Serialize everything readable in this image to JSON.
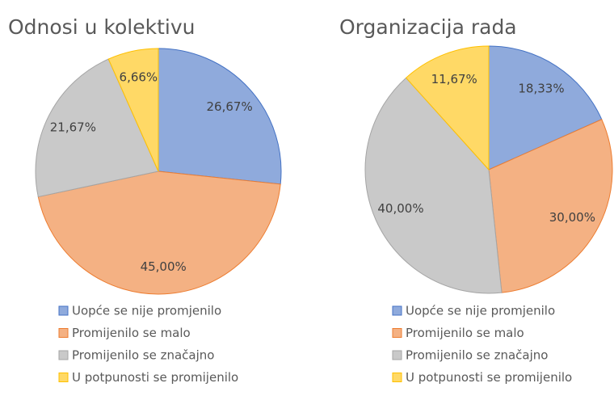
{
  "chart_data": [
    {
      "type": "pie",
      "title": "Odnosi u kolektivu",
      "categories": [
        "Uopće se nije promjenilo",
        "Promijenilo se malo",
        "Promijenilo se značajno",
        "U potpunosti se promijenilo"
      ],
      "values": [
        26.67,
        45.0,
        21.67,
        6.66
      ],
      "value_labels": [
        "26,67%",
        "45,00%",
        "21,67%",
        "6,66%"
      ],
      "colors": [
        "#8faadc",
        "#f4b183",
        "#c9c9c9",
        "#ffd966"
      ]
    },
    {
      "type": "pie",
      "title": "Organizacija rada",
      "categories": [
        "Uopće se nije promjenilo",
        "Promijenilo se malo",
        "Promijenilo se značajno",
        "U potpunosti se promijenilo"
      ],
      "values": [
        18.33,
        30.0,
        40.0,
        11.67
      ],
      "value_labels": [
        "18,33%",
        "30,00%",
        "40,00%",
        "11,67%"
      ],
      "colors": [
        "#8faadc",
        "#f4b183",
        "#c9c9c9",
        "#ffd966"
      ]
    }
  ]
}
